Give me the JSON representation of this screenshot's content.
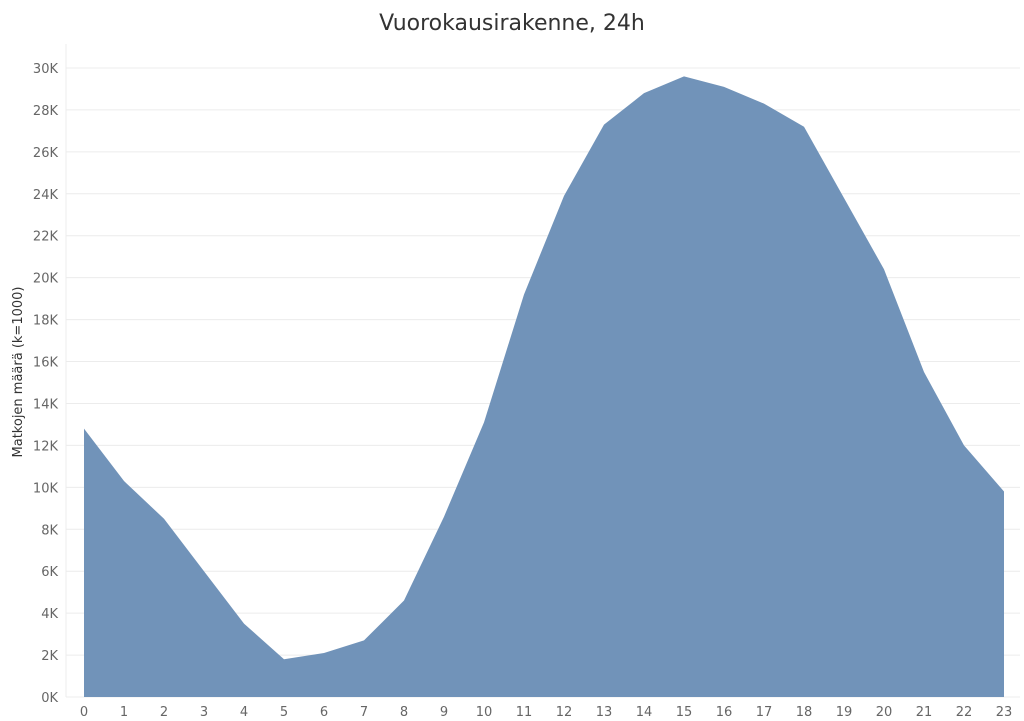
{
  "chart_data": {
    "type": "area",
    "title": "Vuorokausirakenne, 24h",
    "xlabel": "",
    "ylabel": "Matkojen määrä (k=1000)",
    "x": [
      0,
      1,
      2,
      3,
      4,
      5,
      6,
      7,
      8,
      9,
      10,
      11,
      12,
      13,
      14,
      15,
      16,
      17,
      18,
      19,
      20,
      21,
      22,
      23
    ],
    "values": [
      12800,
      10300,
      8500,
      6000,
      3500,
      1800,
      2100,
      2700,
      4600,
      8600,
      13100,
      19200,
      23900,
      27300,
      28800,
      29600,
      29100,
      28300,
      27200,
      23800,
      20400,
      15500,
      12000,
      9800
    ],
    "ylim": [
      0,
      30000
    ],
    "y_ticks": [
      0,
      2000,
      4000,
      6000,
      8000,
      10000,
      12000,
      14000,
      16000,
      18000,
      20000,
      22000,
      24000,
      26000,
      28000,
      30000
    ],
    "y_tick_labels": [
      "0K",
      "2K",
      "4K",
      "6K",
      "8K",
      "10K",
      "12K",
      "14K",
      "16K",
      "18K",
      "20K",
      "22K",
      "24K",
      "26K",
      "28K",
      "30K"
    ],
    "x_tick_labels": [
      "0",
      "1",
      "2",
      "3",
      "4",
      "5",
      "6",
      "7",
      "8",
      "9",
      "10",
      "11",
      "12",
      "13",
      "14",
      "15",
      "16",
      "17",
      "18",
      "19",
      "20",
      "21",
      "22",
      "23"
    ],
    "grid": true,
    "legend": "none",
    "fill_color": "#7193b9",
    "grid_color": "#ececec"
  }
}
